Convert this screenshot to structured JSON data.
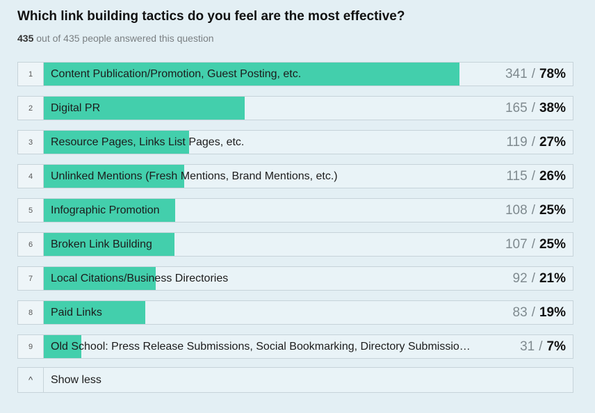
{
  "question": {
    "title": "Which link building tactics do you feel are the most effective?",
    "answered_count": "435",
    "answered_text": " out of 435 people answered this question"
  },
  "chart_data": {
    "type": "bar",
    "total": 435,
    "categories": [
      "Content Publication/Promotion, Guest Posting, etc.",
      "Digital PR",
      "Resource Pages, Links List Pages, etc.",
      "Unlinked Mentions (Fresh Mentions, Brand Mentions, etc.)",
      "Infographic Promotion",
      "Broken Link Building",
      "Local Citations/Business Directories",
      "Paid Links",
      "Old School: Press Release Submissions, Social Bookmarking, Directory Submissio…"
    ],
    "ranks": [
      "1",
      "2",
      "3",
      "4",
      "5",
      "6",
      "7",
      "8",
      "9"
    ],
    "values": [
      341,
      165,
      119,
      115,
      108,
      107,
      92,
      83,
      31
    ],
    "percent_labels": [
      "78%",
      "38%",
      "27%",
      "26%",
      "25%",
      "25%",
      "21%",
      "19%",
      "7%"
    ],
    "bar_color": "#43cfac"
  },
  "controls": {
    "show_less_icon": "chevron-up-icon",
    "show_less_glyph": "^",
    "show_less_label": "Show less"
  },
  "colors": {
    "background": "#e3eff4",
    "bar": "#43cfac"
  }
}
